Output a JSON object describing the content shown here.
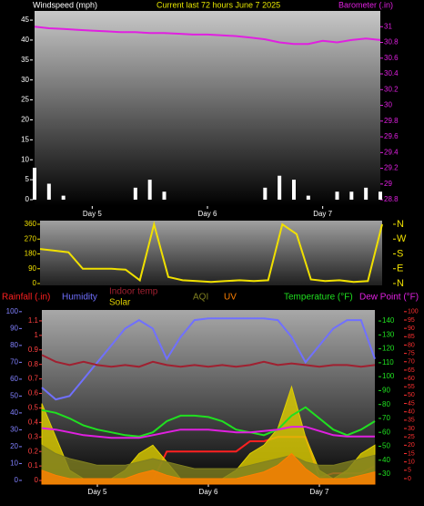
{
  "chart_data": [
    {
      "type": "line",
      "title": "Current last 72 hours June 7 2025",
      "y_label": "Windspeed (mph)",
      "y2_label": "Barometer (.in)",
      "x": [
        0,
        3,
        6,
        9,
        12,
        15,
        18,
        21,
        24,
        27,
        30,
        33,
        36,
        39,
        42,
        45,
        48,
        51,
        54,
        57,
        60,
        63,
        66,
        69,
        72
      ],
      "xlim": [
        0,
        72
      ],
      "xticks": [
        {
          "value": 12,
          "label": "Day 5"
        },
        {
          "value": 36,
          "label": "Day 6"
        },
        {
          "value": 60,
          "label": "Day 7"
        }
      ],
      "ylim": [
        -1.6,
        47.3
      ],
      "yticks": [
        0,
        5,
        10,
        15,
        20,
        25,
        30,
        35,
        40,
        45
      ],
      "y2lim": [
        28.72,
        31.2
      ],
      "y2ticks": [
        28.8,
        29,
        29.2,
        29.4,
        29.6,
        29.8,
        30,
        30.2,
        30.4,
        30.6,
        30.8,
        31
      ],
      "series": [
        {
          "type": "bar",
          "color": "#ffffff",
          "values": [
            8,
            4,
            1,
            0,
            0,
            0,
            0,
            3,
            5,
            2,
            0,
            0,
            0,
            0,
            0,
            0,
            3,
            6,
            5,
            1,
            0,
            2,
            2,
            3,
            2
          ]
        },
        {
          "type": "line",
          "axis": "y2",
          "color": "#e020e0",
          "values": [
            31.0,
            30.98,
            30.97,
            30.96,
            30.95,
            30.94,
            30.93,
            30.93,
            30.92,
            30.92,
            30.91,
            30.9,
            30.9,
            30.89,
            30.88,
            30.86,
            30.84,
            30.8,
            30.78,
            30.78,
            30.82,
            30.8,
            30.83,
            30.85,
            30.83
          ]
        }
      ]
    },
    {
      "type": "line",
      "x": [
        0,
        3,
        6,
        9,
        12,
        15,
        18,
        21,
        24,
        27,
        30,
        33,
        36,
        39,
        42,
        45,
        48,
        51,
        54,
        57,
        60,
        63,
        66,
        69,
        72
      ],
      "xlim": [
        0,
        72
      ],
      "ylim": [
        -11,
        382
      ],
      "yticks": [
        0,
        90,
        180,
        270,
        360
      ],
      "y2lim": [
        -11,
        382
      ],
      "y2ticks": [
        {
          "value": 0,
          "label": "N"
        },
        {
          "value": 90,
          "label": "E"
        },
        {
          "value": 180,
          "label": "S"
        },
        {
          "value": 270,
          "label": "W"
        },
        {
          "value": 360,
          "label": "N"
        }
      ],
      "series": [
        {
          "type": "line",
          "color": "#f0e000",
          "values": [
            210,
            200,
            190,
            90,
            90,
            90,
            85,
            20,
            360,
            40,
            20,
            15,
            10,
            15,
            20,
            15,
            20,
            360,
            300,
            25,
            15,
            20,
            10,
            15,
            360
          ]
        }
      ]
    },
    {
      "type": "line",
      "x": [
        0,
        3,
        6,
        9,
        12,
        15,
        18,
        21,
        24,
        27,
        30,
        33,
        36,
        39,
        42,
        45,
        48,
        51,
        54,
        57,
        60,
        63,
        66,
        69,
        72
      ],
      "xlim": [
        0,
        72
      ],
      "xticks": [
        {
          "value": 12,
          "label": "Day 5"
        },
        {
          "value": 36,
          "label": "Day 6"
        },
        {
          "value": 60,
          "label": "Day 7"
        }
      ],
      "ylim": [
        -2.2,
        101
      ],
      "yticks": [
        0,
        10,
        20,
        30,
        40,
        50,
        60,
        70,
        80,
        90,
        100
      ],
      "y3lim": [
        -0.025,
        1.175
      ],
      "y3ticks": [
        0,
        0.1,
        0.2,
        0.3,
        0.4,
        0.5,
        0.6,
        0.7,
        0.8,
        0.9,
        1,
        1.1
      ],
      "y2lim": [
        22.8,
        147.9
      ],
      "y2ticks": [
        30,
        40,
        50,
        60,
        70,
        80,
        90,
        100,
        110,
        120,
        130,
        140
      ],
      "y4lim": [
        -3.3,
        101
      ],
      "y4ticks": [
        0,
        5,
        10,
        15,
        20,
        25,
        30,
        35,
        40,
        45,
        50,
        55,
        60,
        65,
        70,
        75,
        80,
        85,
        90,
        95,
        100
      ],
      "series": [
        {
          "name": "Rainfall (.in)",
          "type": "line",
          "axis": "y3",
          "color": "#ff2020",
          "values": [
            0,
            0,
            0,
            0,
            0,
            0,
            0,
            0,
            0,
            0.2,
            0.2,
            0.2,
            0.2,
            0.2,
            0.2,
            0.27,
            0.27,
            0.3,
            0.3,
            0.3,
            0.02,
            0.05,
            0.05,
            0.05,
            0.1
          ]
        },
        {
          "name": "Humidity",
          "type": "line",
          "axis": "y",
          "color": "#7070ff",
          "values": [
            55,
            48,
            50,
            60,
            70,
            80,
            90,
            95,
            90,
            72,
            85,
            95,
            96,
            96,
            96,
            96,
            96,
            95,
            85,
            70,
            80,
            90,
            95,
            95,
            72
          ]
        },
        {
          "name": "Indoor temp",
          "type": "line",
          "axis": "y4",
          "color": "#a02030",
          "values": [
            74,
            70,
            68,
            70,
            68,
            67,
            68,
            67,
            70,
            68,
            67,
            68,
            67,
            68,
            67,
            68,
            70,
            68,
            69,
            68,
            67,
            68,
            68,
            67,
            68
          ]
        },
        {
          "name": "Solar",
          "type": "area",
          "axis": "y4",
          "color": "#e0d000",
          "values": [
            45,
            25,
            5,
            0,
            0,
            0,
            5,
            15,
            20,
            10,
            0,
            0,
            0,
            0,
            5,
            15,
            20,
            30,
            55,
            25,
            5,
            0,
            5,
            15,
            20
          ]
        },
        {
          "name": "AQI",
          "type": "area",
          "axis": "y4",
          "color": "#808020",
          "values": [
            20,
            15,
            12,
            10,
            8,
            8,
            8,
            10,
            12,
            10,
            8,
            6,
            6,
            6,
            6,
            8,
            10,
            12,
            14,
            10,
            8,
            8,
            10,
            12,
            14
          ]
        },
        {
          "name": "UV",
          "type": "area",
          "axis": "y4",
          "color": "#ff8000",
          "values": [
            5,
            2,
            0,
            0,
            0,
            0,
            0,
            3,
            5,
            2,
            0,
            0,
            0,
            0,
            0,
            2,
            4,
            8,
            15,
            6,
            0,
            0,
            0,
            2,
            4
          ]
        },
        {
          "name": "Temperature (°F)",
          "type": "line",
          "axis": "y2",
          "color": "#20e020",
          "values": [
            76,
            74,
            70,
            65,
            62,
            60,
            58,
            57,
            60,
            68,
            72,
            72,
            71,
            68,
            62,
            60,
            58,
            62,
            72,
            78,
            70,
            62,
            58,
            62,
            68
          ]
        },
        {
          "name": "Dew Point (°F)",
          "type": "line",
          "axis": "y2",
          "color": "#e020e0",
          "values": [
            63,
            62,
            60,
            58,
            57,
            56,
            56,
            56,
            58,
            60,
            62,
            62,
            62,
            61,
            60,
            60,
            61,
            62,
            64,
            64,
            61,
            58,
            57,
            57,
            57
          ]
        }
      ]
    }
  ]
}
